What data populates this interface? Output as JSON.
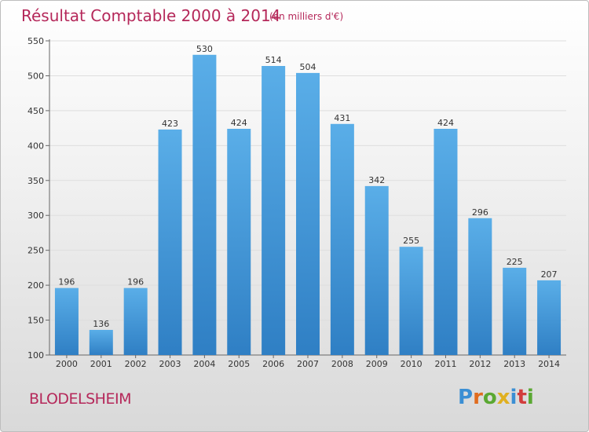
{
  "title": "Résultat Comptable 2000 à 2014",
  "subtitle": "(en milliers d'€)",
  "place": "BLODELSHEIM",
  "logo": {
    "letters": [
      "P",
      "r",
      "o",
      "x",
      "i",
      "t",
      "i"
    ],
    "colors": [
      "#3b8fd4",
      "#e06c1f",
      "#5aa832",
      "#e0b020",
      "#3b8fd4",
      "#d23c3c",
      "#5aa832"
    ]
  },
  "colors": {
    "bar_top": "#5aaee8",
    "bar_bottom": "#2f7fc4",
    "title": "#b5285a"
  },
  "chart_data": {
    "type": "bar",
    "title": "Résultat Comptable 2000 à 2014",
    "xlabel": "",
    "ylabel": "",
    "categories": [
      "2000",
      "2001",
      "2002",
      "2003",
      "2004",
      "2005",
      "2006",
      "2007",
      "2008",
      "2009",
      "2010",
      "2011",
      "2012",
      "2013",
      "2014"
    ],
    "values": [
      196,
      136,
      196,
      423,
      530,
      424,
      514,
      504,
      431,
      342,
      255,
      424,
      296,
      225,
      207
    ],
    "ylim": [
      100,
      550
    ],
    "yticks": [
      100,
      150,
      200,
      250,
      300,
      350,
      400,
      450,
      500,
      550
    ],
    "grid": true
  }
}
